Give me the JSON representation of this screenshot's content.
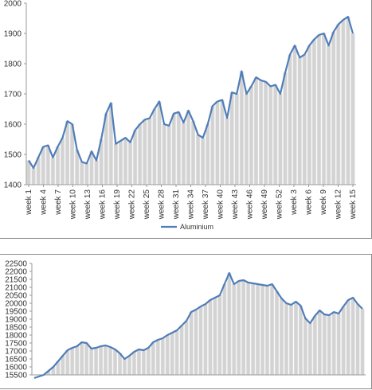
{
  "chart_data": [
    {
      "type": "area",
      "ylim": [
        1400,
        2000
      ],
      "y_ticks": [
        1400,
        1500,
        1600,
        1700,
        1800,
        1900,
        2000
      ],
      "x_ticks": [
        "week 1",
        "week 4",
        "week 7",
        "week 10",
        "week 13",
        "week 16",
        "week 19",
        "week 22",
        "week 25",
        "week 28",
        "week 31",
        "week 34",
        "week 37",
        "week 40",
        "week 43",
        "week 46",
        "week 49",
        "week 52",
        "week 3",
        "week 6",
        "week 9",
        "week 12",
        "week 15"
      ],
      "legend": {
        "label": "Aluminium",
        "position": "bottom"
      },
      "grid": false,
      "colors": {
        "line": "#4f7db8",
        "area": "#d3d3d3"
      },
      "series": [
        {
          "name": "Aluminium",
          "values": [
            1480,
            1455,
            1490,
            1525,
            1530,
            1490,
            1525,
            1555,
            1610,
            1600,
            1515,
            1475,
            1470,
            1510,
            1480,
            1550,
            1635,
            1670,
            1535,
            1545,
            1555,
            1540,
            1580,
            1600,
            1615,
            1620,
            1650,
            1675,
            1600,
            1595,
            1635,
            1640,
            1605,
            1645,
            1610,
            1565,
            1555,
            1600,
            1660,
            1675,
            1680,
            1620,
            1705,
            1700,
            1775,
            1700,
            1725,
            1755,
            1745,
            1740,
            1725,
            1730,
            1700,
            1770,
            1830,
            1860,
            1820,
            1830,
            1860,
            1880,
            1895,
            1900,
            1860,
            1905,
            1930,
            1945,
            1955,
            1900
          ]
        }
      ]
    },
    {
      "type": "area",
      "ylim": [
        15500,
        22500
      ],
      "y_ticks": [
        15500,
        16000,
        16500,
        17000,
        17500,
        18000,
        18500,
        19000,
        19500,
        20000,
        20500,
        21000,
        21500,
        22000,
        22500
      ],
      "grid": false,
      "colors": {
        "line": "#4f7db8",
        "area": "#d3d3d3"
      },
      "series": [
        {
          "values": [
            15300,
            15400,
            15500,
            15750,
            16000,
            16350,
            16700,
            17050,
            17200,
            17300,
            17550,
            17500,
            17150,
            17200,
            17300,
            17350,
            17250,
            17100,
            16850,
            16500,
            16700,
            16950,
            17100,
            17050,
            17200,
            17550,
            17700,
            17800,
            18000,
            18150,
            18300,
            18600,
            18900,
            19450,
            19600,
            19800,
            19950,
            20200,
            20350,
            20500,
            21200,
            21900,
            21200,
            21400,
            21450,
            21300,
            21250,
            21200,
            21150,
            21100,
            21200,
            20750,
            20300,
            20000,
            19900,
            20100,
            19850,
            19050,
            18750,
            19200,
            19550,
            19300,
            19250,
            19450,
            19350,
            19800,
            20200,
            20350,
            19950,
            19650
          ]
        }
      ]
    }
  ]
}
